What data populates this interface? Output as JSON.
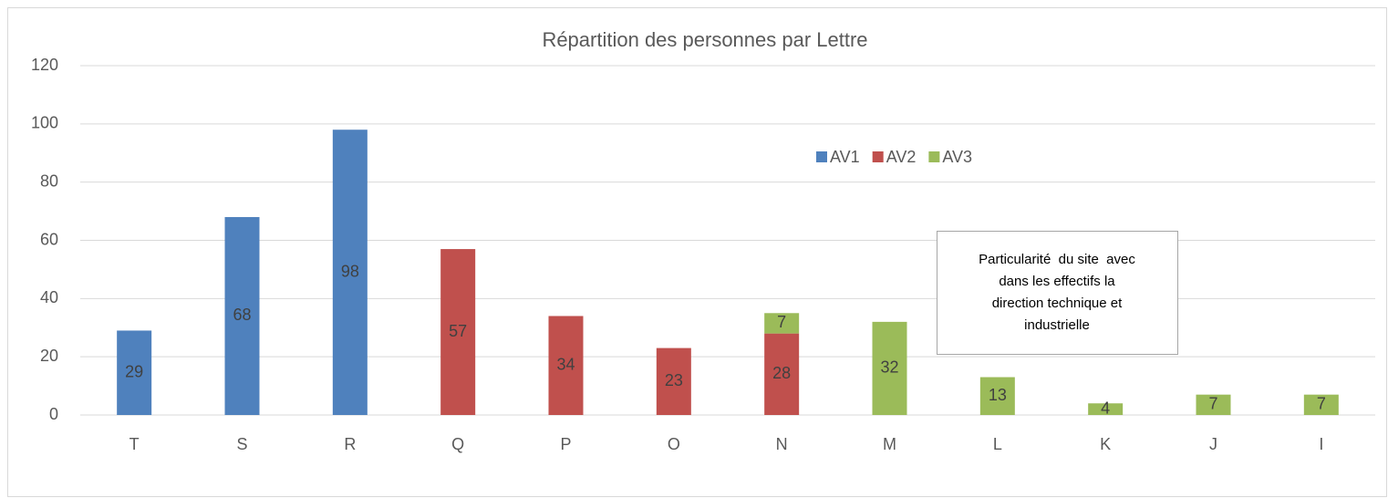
{
  "chart_data": {
    "type": "stacked_bar",
    "title": "Répartition des personnes par Lettre",
    "categories": [
      "T",
      "S",
      "R",
      "Q",
      "P",
      "O",
      "N",
      "M",
      "L",
      "K",
      "J",
      "I"
    ],
    "series": [
      {
        "name": "AV1",
        "color": "#4f81bd",
        "values": [
          29,
          68,
          98,
          null,
          null,
          null,
          null,
          null,
          null,
          null,
          null,
          null
        ]
      },
      {
        "name": "AV2",
        "color": "#c0504d",
        "values": [
          null,
          null,
          null,
          57,
          34,
          23,
          28,
          null,
          null,
          null,
          null,
          null
        ]
      },
      {
        "name": "AV3",
        "color": "#9bbb59",
        "values": [
          null,
          null,
          null,
          null,
          null,
          null,
          7,
          32,
          13,
          4,
          7,
          7
        ]
      }
    ],
    "ylim": [
      0,
      120
    ],
    "yticks": [
      0,
      20,
      40,
      60,
      80,
      100,
      120
    ],
    "grid": true,
    "legend": "top",
    "annotation": [
      "Particularité  du site  avec",
      "dans les effectifs la",
      "direction technique et",
      "industrielle"
    ]
  }
}
